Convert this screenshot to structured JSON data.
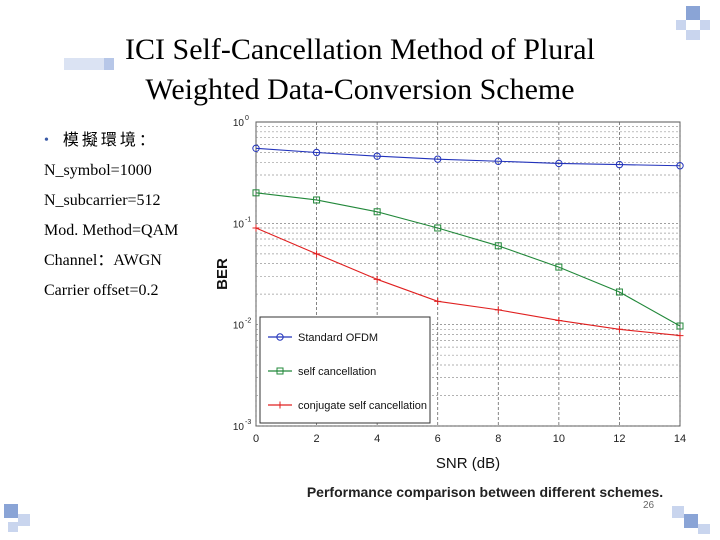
{
  "slide": {
    "title_line1": "ICI Self-Cancellation Method of Plural",
    "title_line2": "Weighted Data-Conversion Scheme",
    "bullet_head": "模擬環境：",
    "params": [
      "N_symbol=1000",
      "N_subcarrier=512",
      "Mod. Method=QAM",
      "Channel：AWGN",
      "Carrier offset=0.2"
    ],
    "page_number": "26",
    "accent_color": "#3a5aa6"
  },
  "chart_data": {
    "type": "line",
    "caption": "Performance comparison between different schemes.",
    "xlabel": "SNR (dB)",
    "ylabel": "BER",
    "y_scale": "log",
    "xlim": [
      0,
      14
    ],
    "ylim": [
      0.001,
      1
    ],
    "x_ticks": [
      "0",
      "2",
      "4",
      "6",
      "8",
      "10",
      "12",
      "14"
    ],
    "y_tick_bases": [
      "10",
      "10",
      "10",
      "10"
    ],
    "y_tick_exps": [
      "-3",
      "-2",
      "-1",
      "0"
    ],
    "grid": true,
    "legend_position": "bottom-left",
    "series": [
      {
        "name": "Standard OFDM",
        "color": "#2233bb",
        "marker": "circle",
        "x": [
          0,
          2,
          4,
          6,
          8,
          10,
          12,
          14
        ],
        "y": [
          0.55,
          0.5,
          0.46,
          0.43,
          0.41,
          0.39,
          0.38,
          0.37
        ]
      },
      {
        "name": "self cancellation",
        "color": "#22883a",
        "marker": "square",
        "x": [
          0,
          2,
          4,
          6,
          8,
          10,
          12,
          14
        ],
        "y": [
          0.2,
          0.17,
          0.13,
          0.09,
          0.06,
          0.037,
          0.021,
          0.0097
        ]
      },
      {
        "name": "conjugate self cancellation",
        "color": "#e02020",
        "marker": "plus",
        "x": [
          0,
          2,
          4,
          6,
          8,
          10,
          12,
          14
        ],
        "y": [
          0.09,
          0.05,
          0.028,
          0.017,
          0.014,
          0.011,
          0.009,
          0.0078
        ]
      }
    ]
  }
}
